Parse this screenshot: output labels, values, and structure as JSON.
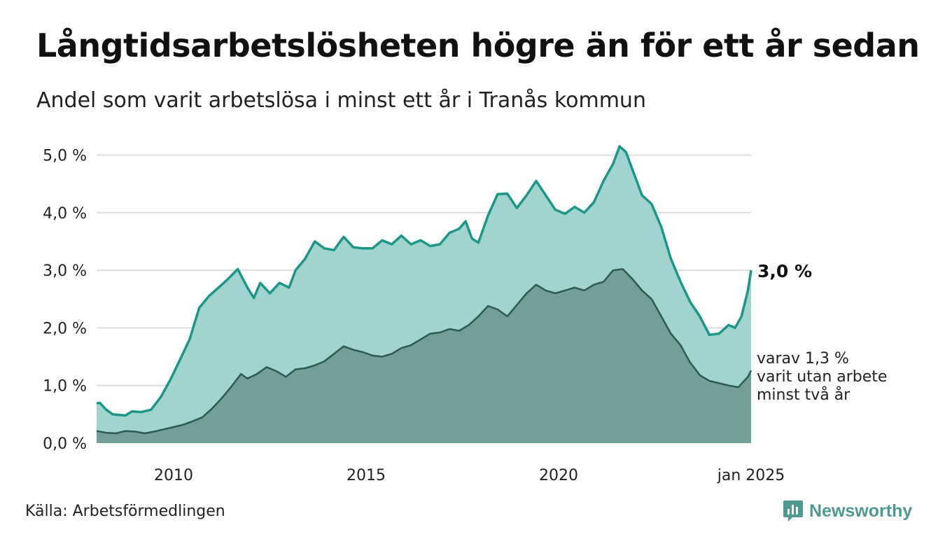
{
  "header": {
    "title": "Långtidsarbetslösheten högre än för ett år sedan",
    "subtitle": "Andel som varit arbetslösa i minst ett år i Tranås kommun"
  },
  "footer": {
    "source": "Källa: Arbetsförmedlingen",
    "brand": "Newsworthy",
    "brand_icon": "bar-chart-speech-bubble-icon"
  },
  "colors": {
    "total_fill": "#a2d4cf",
    "total_line": "#1c9687",
    "longterm_fill": "#729f98",
    "longterm_line": "#2a5a53",
    "grid": "#dddddd",
    "brand": "#4f9a90"
  },
  "chart_data": {
    "type": "area",
    "x_range": [
      "2008-01",
      "2025-01"
    ],
    "ylim": [
      0,
      5.2
    ],
    "grid": true,
    "y_ticks": [
      {
        "value": 0,
        "label": "0,0 %"
      },
      {
        "value": 1,
        "label": "1,0 %"
      },
      {
        "value": 2,
        "label": "2,0 %"
      },
      {
        "value": 3,
        "label": "3,0 %"
      },
      {
        "value": 4,
        "label": "4,0 %"
      },
      {
        "value": 5,
        "label": "5,0 %"
      }
    ],
    "x_ticks": [
      {
        "value": "2010-01",
        "label": "2010"
      },
      {
        "value": "2015-01",
        "label": "2015"
      },
      {
        "value": "2020-01",
        "label": "2020"
      },
      {
        "value": "2025-01",
        "label": "jan 2025"
      }
    ],
    "series": [
      {
        "key": "total",
        "points": [
          [
            "2008-01",
            0.69
          ],
          [
            "2008-02",
            0.7
          ],
          [
            "2008-04",
            0.58
          ],
          [
            "2008-06",
            0.5
          ],
          [
            "2008-08",
            0.49
          ],
          [
            "2008-10",
            0.48
          ],
          [
            "2008-12",
            0.55
          ],
          [
            "2009-03",
            0.54
          ],
          [
            "2009-06",
            0.58
          ],
          [
            "2009-09",
            0.8
          ],
          [
            "2009-12",
            1.1
          ],
          [
            "2010-03",
            1.45
          ],
          [
            "2010-06",
            1.8
          ],
          [
            "2010-09",
            2.35
          ],
          [
            "2010-12",
            2.55
          ],
          [
            "2011-03",
            2.7
          ],
          [
            "2011-06",
            2.85
          ],
          [
            "2011-09",
            3.02
          ],
          [
            "2011-12",
            2.7
          ],
          [
            "2012-02",
            2.52
          ],
          [
            "2012-04",
            2.78
          ],
          [
            "2012-07",
            2.6
          ],
          [
            "2012-10",
            2.78
          ],
          [
            "2013-01",
            2.7
          ],
          [
            "2013-03",
            3.0
          ],
          [
            "2013-06",
            3.2
          ],
          [
            "2013-09",
            3.5
          ],
          [
            "2013-12",
            3.38
          ],
          [
            "2014-03",
            3.35
          ],
          [
            "2014-06",
            3.58
          ],
          [
            "2014-09",
            3.4
          ],
          [
            "2014-12",
            3.38
          ],
          [
            "2015-03",
            3.38
          ],
          [
            "2015-06",
            3.52
          ],
          [
            "2015-09",
            3.45
          ],
          [
            "2015-12",
            3.6
          ],
          [
            "2016-03",
            3.45
          ],
          [
            "2016-06",
            3.52
          ],
          [
            "2016-09",
            3.42
          ],
          [
            "2016-12",
            3.45
          ],
          [
            "2017-03",
            3.65
          ],
          [
            "2017-06",
            3.72
          ],
          [
            "2017-08",
            3.85
          ],
          [
            "2017-10",
            3.55
          ],
          [
            "2017-12",
            3.48
          ],
          [
            "2018-03",
            3.95
          ],
          [
            "2018-06",
            4.32
          ],
          [
            "2018-09",
            4.33
          ],
          [
            "2018-12",
            4.08
          ],
          [
            "2019-03",
            4.3
          ],
          [
            "2019-06",
            4.55
          ],
          [
            "2019-09",
            4.3
          ],
          [
            "2019-12",
            4.05
          ],
          [
            "2020-03",
            3.98
          ],
          [
            "2020-06",
            4.1
          ],
          [
            "2020-09",
            4.0
          ],
          [
            "2020-12",
            4.18
          ],
          [
            "2021-03",
            4.55
          ],
          [
            "2021-06",
            4.85
          ],
          [
            "2021-08",
            5.15
          ],
          [
            "2021-10",
            5.05
          ],
          [
            "2021-12",
            4.75
          ],
          [
            "2022-03",
            4.3
          ],
          [
            "2022-06",
            4.15
          ],
          [
            "2022-09",
            3.75
          ],
          [
            "2022-12",
            3.2
          ],
          [
            "2023-03",
            2.8
          ],
          [
            "2023-06",
            2.45
          ],
          [
            "2023-09",
            2.2
          ],
          [
            "2023-12",
            1.88
          ],
          [
            "2024-03",
            1.9
          ],
          [
            "2024-06",
            2.05
          ],
          [
            "2024-08",
            2.0
          ],
          [
            "2024-10",
            2.2
          ],
          [
            "2024-12",
            2.65
          ],
          [
            "2025-01",
            3.0
          ]
        ],
        "end_label": "3,0 %"
      },
      {
        "key": "longterm",
        "points": [
          [
            "2008-01",
            0.21
          ],
          [
            "2008-04",
            0.18
          ],
          [
            "2008-07",
            0.17
          ],
          [
            "2008-10",
            0.21
          ],
          [
            "2009-01",
            0.2
          ],
          [
            "2009-04",
            0.17
          ],
          [
            "2009-07",
            0.2
          ],
          [
            "2009-10",
            0.24
          ],
          [
            "2010-01",
            0.28
          ],
          [
            "2010-04",
            0.32
          ],
          [
            "2010-07",
            0.38
          ],
          [
            "2010-10",
            0.45
          ],
          [
            "2011-01",
            0.6
          ],
          [
            "2011-04",
            0.78
          ],
          [
            "2011-07",
            0.98
          ],
          [
            "2011-10",
            1.2
          ],
          [
            "2011-12",
            1.12
          ],
          [
            "2012-03",
            1.2
          ],
          [
            "2012-06",
            1.32
          ],
          [
            "2012-09",
            1.25
          ],
          [
            "2012-12",
            1.15
          ],
          [
            "2013-03",
            1.28
          ],
          [
            "2013-06",
            1.3
          ],
          [
            "2013-09",
            1.35
          ],
          [
            "2013-12",
            1.42
          ],
          [
            "2014-03",
            1.55
          ],
          [
            "2014-06",
            1.68
          ],
          [
            "2014-09",
            1.62
          ],
          [
            "2014-12",
            1.58
          ],
          [
            "2015-03",
            1.52
          ],
          [
            "2015-06",
            1.5
          ],
          [
            "2015-09",
            1.55
          ],
          [
            "2015-12",
            1.65
          ],
          [
            "2016-03",
            1.7
          ],
          [
            "2016-06",
            1.8
          ],
          [
            "2016-09",
            1.9
          ],
          [
            "2016-12",
            1.92
          ],
          [
            "2017-03",
            1.98
          ],
          [
            "2017-06",
            1.95
          ],
          [
            "2017-09",
            2.05
          ],
          [
            "2017-12",
            2.2
          ],
          [
            "2018-03",
            2.38
          ],
          [
            "2018-06",
            2.32
          ],
          [
            "2018-09",
            2.2
          ],
          [
            "2018-12",
            2.4
          ],
          [
            "2019-03",
            2.6
          ],
          [
            "2019-06",
            2.75
          ],
          [
            "2019-09",
            2.65
          ],
          [
            "2019-12",
            2.6
          ],
          [
            "2020-03",
            2.65
          ],
          [
            "2020-06",
            2.7
          ],
          [
            "2020-09",
            2.65
          ],
          [
            "2020-12",
            2.75
          ],
          [
            "2021-03",
            2.8
          ],
          [
            "2021-06",
            3.0
          ],
          [
            "2021-09",
            3.02
          ],
          [
            "2021-12",
            2.85
          ],
          [
            "2022-03",
            2.65
          ],
          [
            "2022-06",
            2.5
          ],
          [
            "2022-09",
            2.2
          ],
          [
            "2022-12",
            1.9
          ],
          [
            "2023-03",
            1.7
          ],
          [
            "2023-06",
            1.4
          ],
          [
            "2023-09",
            1.18
          ],
          [
            "2023-12",
            1.08
          ],
          [
            "2024-03",
            1.04
          ],
          [
            "2024-06",
            1.0
          ],
          [
            "2024-09",
            0.97
          ],
          [
            "2024-12",
            1.15
          ],
          [
            "2025-01",
            1.26
          ]
        ],
        "end_label": [
          "varav 1,3 %",
          "varit utan arbete",
          "minst två år"
        ]
      }
    ]
  }
}
